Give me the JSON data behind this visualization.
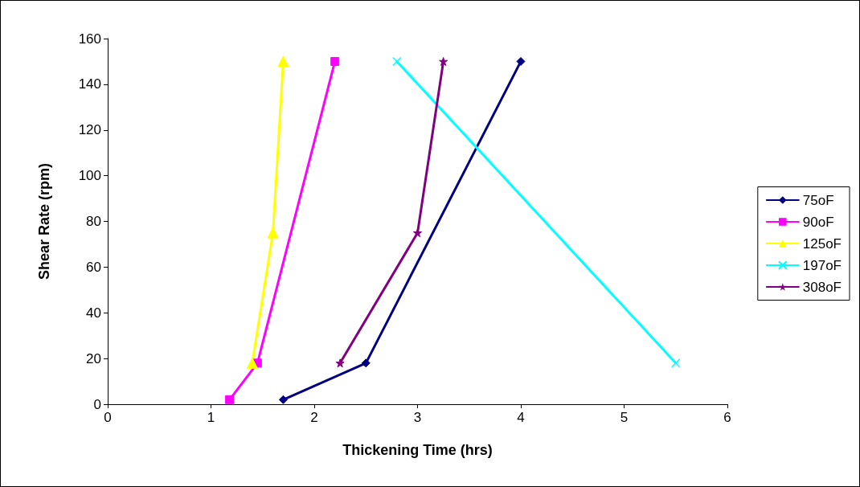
{
  "chart_data": {
    "type": "line",
    "xlabel": "Thickening Time (hrs)",
    "ylabel": "Shear Rate (rpm)",
    "xlim": [
      0,
      6
    ],
    "xticks": [
      0,
      1,
      2,
      3,
      4,
      5,
      6
    ],
    "ylim": [
      0,
      160
    ],
    "yticks": [
      0,
      20,
      40,
      60,
      80,
      100,
      120,
      140,
      160
    ],
    "grid": false,
    "legend": "right",
    "line_style": "solid",
    "series": [
      {
        "name": "75oF",
        "color": "#000080",
        "marker": "diamond",
        "x": [
          1.7,
          2.5,
          4
        ],
        "values": [
          2,
          18,
          150
        ]
      },
      {
        "name": "90oF",
        "color": "#ff00ff",
        "marker": "square",
        "x": [
          1.18,
          1.45,
          2.2
        ],
        "values": [
          2,
          18,
          150
        ]
      },
      {
        "name": "125oF",
        "color": "#ffff00",
        "marker": "triangle",
        "x": [
          1.4,
          1.6,
          1.7
        ],
        "values": [
          18,
          75,
          150
        ]
      },
      {
        "name": "197oF",
        "color": "#00ffff",
        "marker": "cross",
        "x": [
          2.8,
          5.5
        ],
        "values": [
          150,
          18
        ]
      },
      {
        "name": "308oF",
        "color": "#800080",
        "marker": "star",
        "x": [
          2.25,
          3,
          3.25
        ],
        "values": [
          18,
          75,
          150
        ]
      }
    ]
  }
}
